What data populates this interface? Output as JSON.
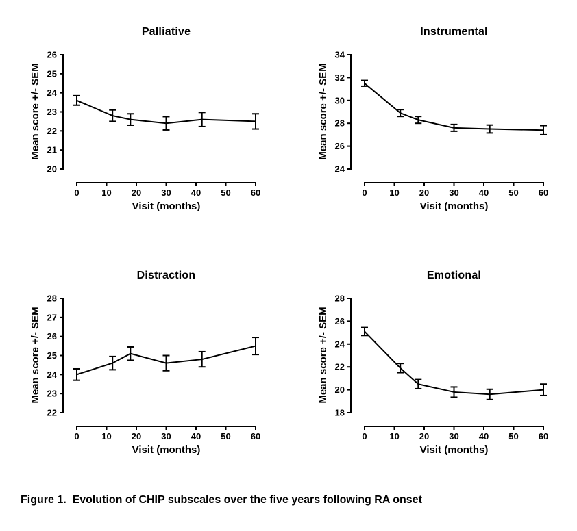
{
  "figure": {
    "caption": "Figure 1.  Evolution of CHIP subscales over the five years following RA onset",
    "background_color": "#ffffff",
    "ink_color": "#000000"
  },
  "chart_data": [
    {
      "type": "line",
      "title": "Palliative",
      "xlabel": "Visit (months)",
      "ylabel": "Mean score +/- SEM",
      "x": [
        0,
        12,
        18,
        30,
        42,
        60
      ],
      "y": [
        23.6,
        22.8,
        22.6,
        22.4,
        22.6,
        22.5
      ],
      "sem": [
        0.25,
        0.3,
        0.3,
        0.35,
        0.37,
        0.4
      ],
      "xlim": [
        0,
        60
      ],
      "ylim": [
        20,
        26
      ],
      "xticks": [
        0,
        10,
        20,
        30,
        40,
        50,
        60
      ],
      "yticks": [
        20,
        21,
        22,
        23,
        24,
        25,
        26
      ],
      "grid": false,
      "legend": "none",
      "error_bars": "SEM",
      "color": "#000000"
    },
    {
      "type": "line",
      "title": "Instrumental",
      "xlabel": "Visit (months)",
      "ylabel": "Mean score +/- SEM",
      "x": [
        0,
        12,
        18,
        30,
        42,
        60
      ],
      "y": [
        31.5,
        28.9,
        28.3,
        27.6,
        27.5,
        27.4
      ],
      "sem": [
        0.25,
        0.3,
        0.3,
        0.3,
        0.35,
        0.4
      ],
      "xlim": [
        0,
        60
      ],
      "ylim": [
        24,
        34
      ],
      "xticks": [
        0,
        10,
        20,
        30,
        40,
        50,
        60
      ],
      "yticks": [
        24,
        26,
        28,
        30,
        32,
        34
      ],
      "grid": false,
      "legend": "none",
      "error_bars": "SEM",
      "color": "#000000"
    },
    {
      "type": "line",
      "title": "Distraction",
      "xlabel": "Visit (months)",
      "ylabel": "Mean score +/- SEM",
      "x": [
        0,
        12,
        18,
        30,
        42,
        60
      ],
      "y": [
        24.0,
        24.6,
        25.1,
        24.6,
        24.8,
        25.5
      ],
      "sem": [
        0.3,
        0.35,
        0.35,
        0.4,
        0.4,
        0.45
      ],
      "xlim": [
        0,
        60
      ],
      "ylim": [
        22,
        28
      ],
      "xticks": [
        0,
        10,
        20,
        30,
        40,
        50,
        60
      ],
      "yticks": [
        22,
        23,
        24,
        25,
        26,
        27,
        28
      ],
      "grid": false,
      "legend": "none",
      "error_bars": "SEM",
      "color": "#000000"
    },
    {
      "type": "line",
      "title": "Emotional",
      "xlabel": "Visit (months)",
      "ylabel": "Mean score +/- SEM",
      "x": [
        0,
        12,
        18,
        30,
        42,
        60
      ],
      "y": [
        25.1,
        21.9,
        20.5,
        19.8,
        19.6,
        20.0
      ],
      "sem": [
        0.35,
        0.4,
        0.4,
        0.45,
        0.45,
        0.5
      ],
      "xlim": [
        0,
        60
      ],
      "ylim": [
        18,
        28
      ],
      "xticks": [
        0,
        10,
        20,
        30,
        40,
        50,
        60
      ],
      "yticks": [
        18,
        20,
        22,
        24,
        26,
        28
      ],
      "grid": false,
      "legend": "none",
      "error_bars": "SEM",
      "color": "#000000"
    }
  ]
}
